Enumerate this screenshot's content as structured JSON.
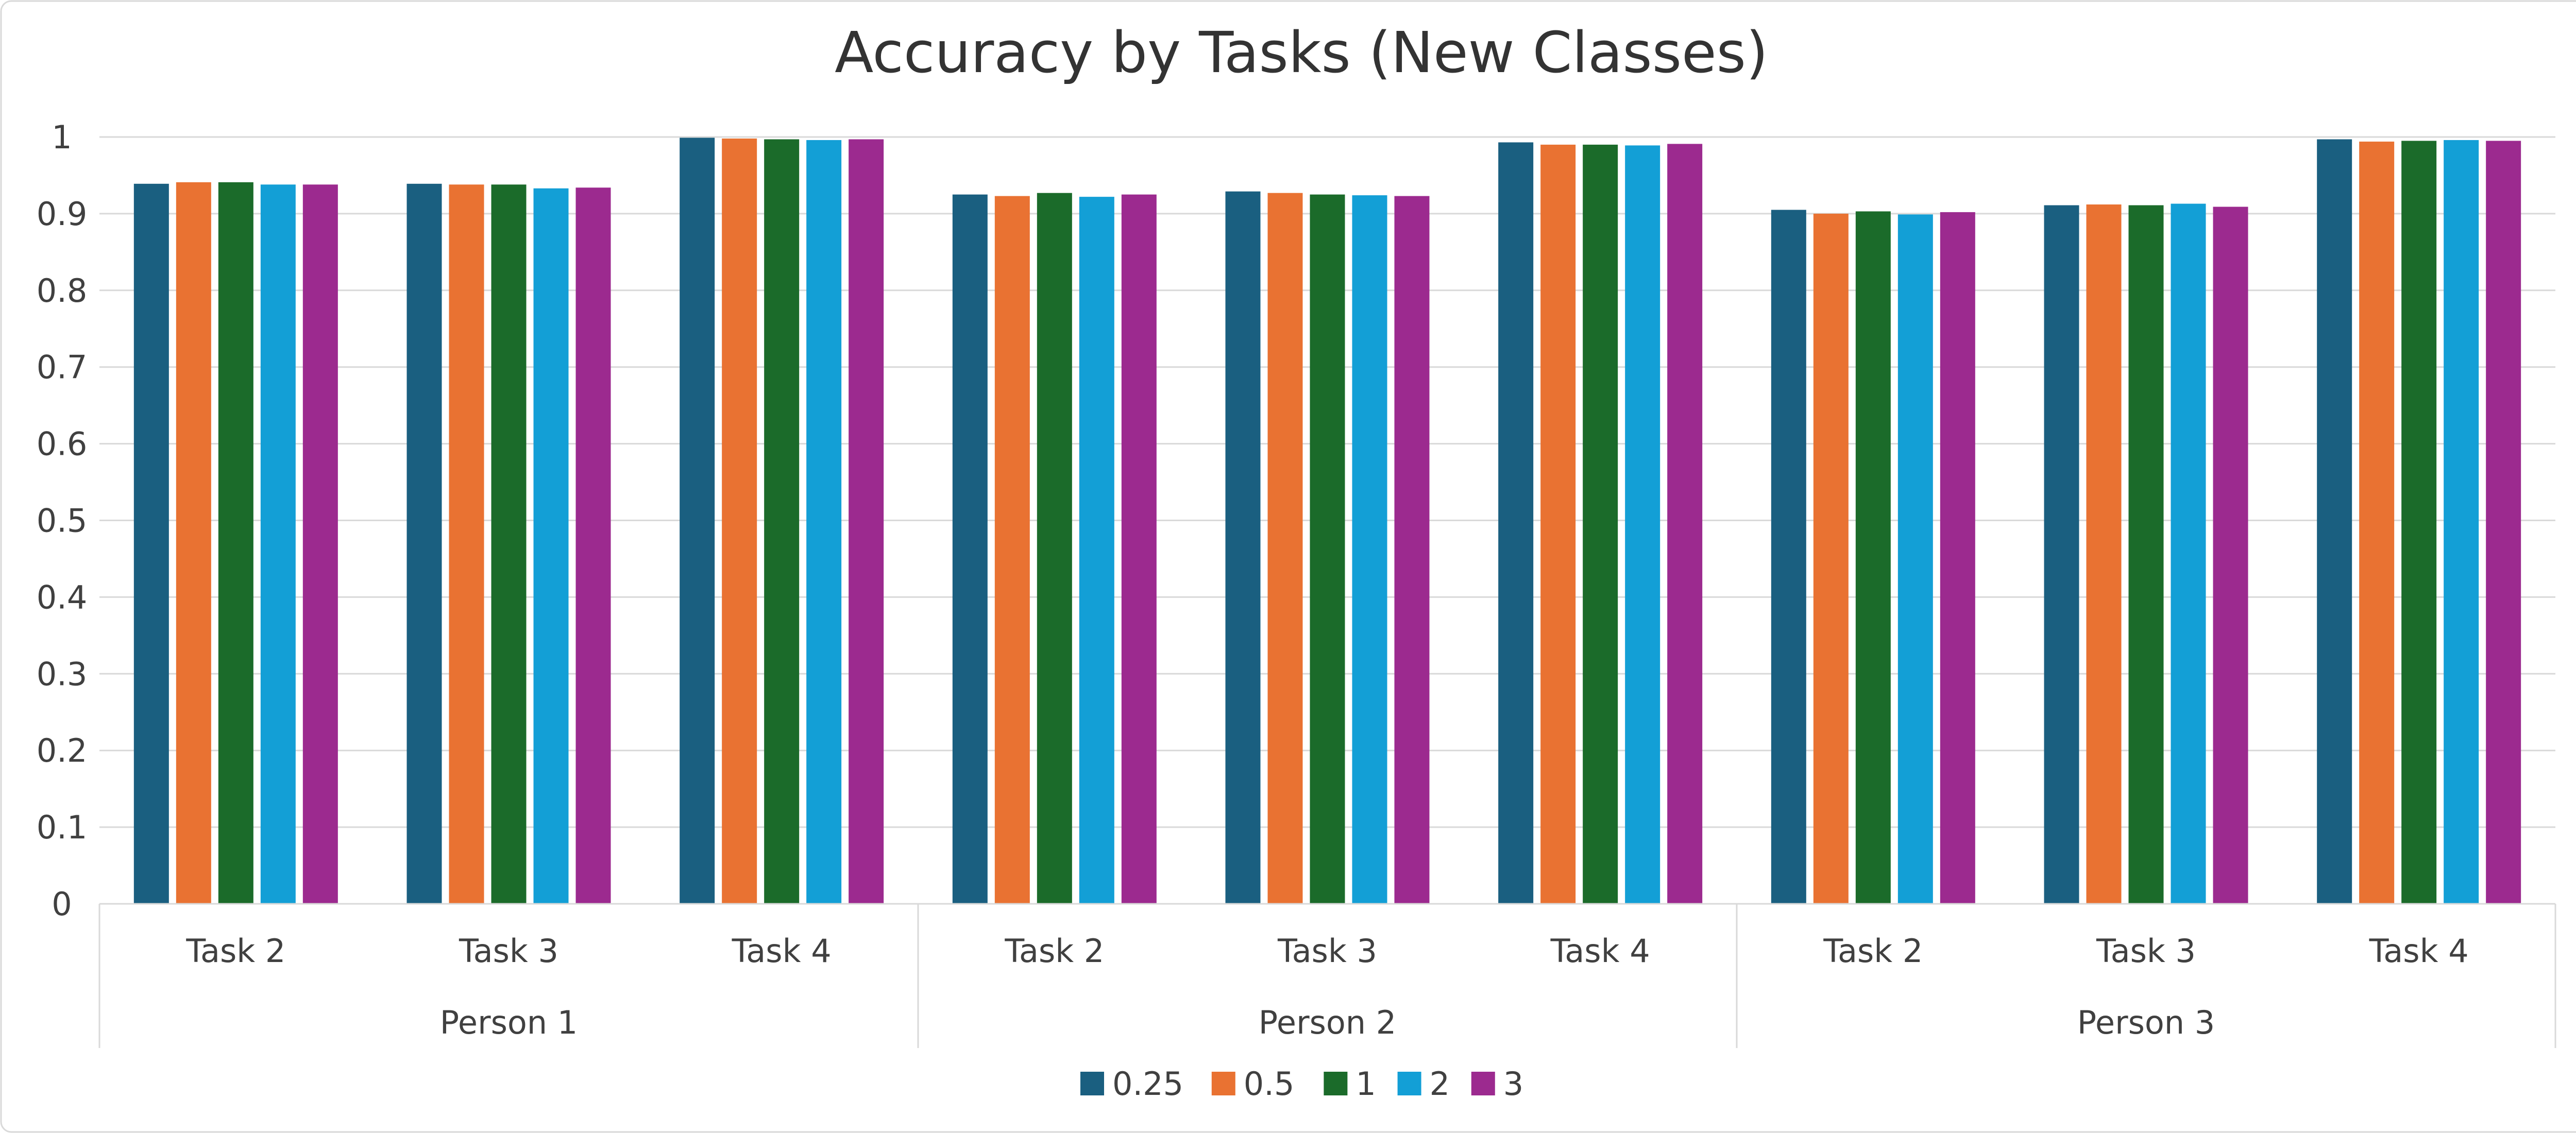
{
  "chart_data": {
    "type": "bar",
    "title": "Accuracy by Tasks (New Classes)",
    "xlabel": "",
    "ylabel": "",
    "ylim": [
      0,
      1
    ],
    "yticks": [
      0,
      0.1,
      0.2,
      0.3,
      0.4,
      0.5,
      0.6,
      0.7,
      0.8,
      0.9,
      1
    ],
    "ytick_labels": [
      "0",
      "0.1",
      "0.2",
      "0.3",
      "0.4",
      "0.5",
      "0.6",
      "0.7",
      "0.8",
      "0.9",
      "1"
    ],
    "grid": true,
    "legend_position": "bottom",
    "groups": [
      {
        "label": "Person 1",
        "categories": [
          "Task 2",
          "Task 3",
          "Task 4"
        ]
      },
      {
        "label": "Person 2",
        "categories": [
          "Task 2",
          "Task 3",
          "Task 4"
        ]
      },
      {
        "label": "Person 3",
        "categories": [
          "Task 2",
          "Task 3",
          "Task 4"
        ]
      }
    ],
    "series": [
      {
        "name": "0.25",
        "color": "#1a5f80",
        "values": [
          0.939,
          0.939,
          0.999,
          0.925,
          0.929,
          0.993,
          0.905,
          0.911,
          0.997
        ]
      },
      {
        "name": "0.5",
        "color": "#e97232",
        "values": [
          0.941,
          0.938,
          0.998,
          0.923,
          0.927,
          0.99,
          0.9,
          0.912,
          0.994
        ]
      },
      {
        "name": "1",
        "color": "#1b6b2a",
        "values": [
          0.941,
          0.938,
          0.997,
          0.927,
          0.925,
          0.99,
          0.903,
          0.911,
          0.995
        ]
      },
      {
        "name": "2",
        "color": "#139fd6",
        "values": [
          0.938,
          0.933,
          0.996,
          0.922,
          0.924,
          0.989,
          0.899,
          0.913,
          0.996
        ]
      },
      {
        "name": "3",
        "color": "#9c2a8f",
        "values": [
          0.938,
          0.934,
          0.997,
          0.925,
          0.923,
          0.991,
          0.902,
          0.909,
          0.995
        ]
      }
    ]
  }
}
